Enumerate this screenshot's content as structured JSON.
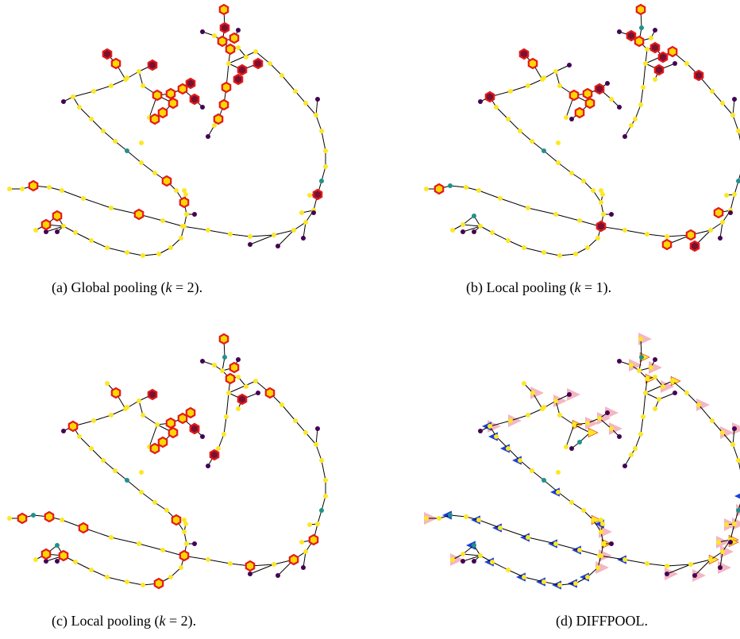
{
  "panels": [
    {
      "id": "a",
      "caption_prefix": "(a) Global pooling (",
      "k_var": "k",
      "k_eq": " = 2).",
      "style": "pool"
    },
    {
      "id": "b",
      "caption_prefix": "(b) Local pooling (",
      "k_var": "k",
      "k_eq": " = 1).",
      "style": "pool"
    },
    {
      "id": "c",
      "caption_prefix": "(c) Local pooling (",
      "k_var": "k",
      "k_eq": " = 2).",
      "style": "pool"
    },
    {
      "id": "d",
      "caption_prefix": "(d) DIFFPOOL.",
      "k_var": "",
      "k_eq": "",
      "style": "diff"
    }
  ],
  "colors": {
    "node_yellow": "#fde725",
    "node_teal": "#21918c",
    "node_purple": "#440154",
    "pooled_outline": "#e31a1c",
    "pooled_fill_light": "#ffd700",
    "pooled_fill_dark": "#7a1030",
    "diff_pink": "#f4b6c2",
    "diff_blue": "#1f3fd6",
    "diff_yellow": "#fde725",
    "edge": "#000000"
  }
}
